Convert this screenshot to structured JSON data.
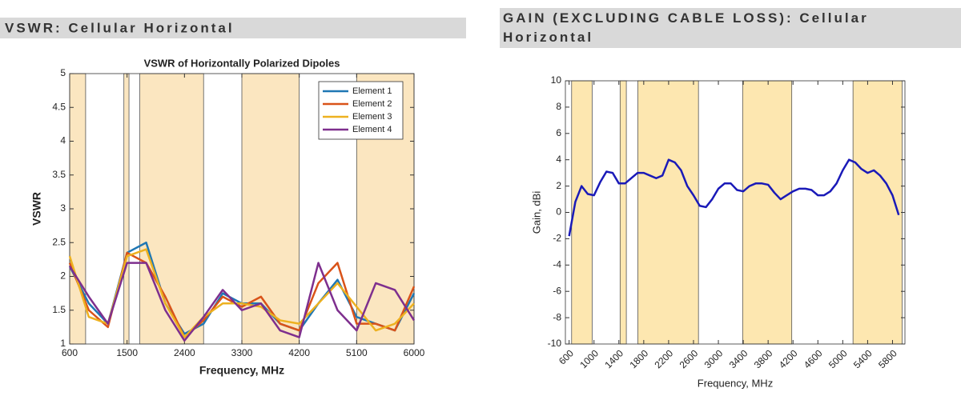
{
  "chart_data": [
    {
      "type": "line",
      "section_title": "VSWR: Cellular Horizontal",
      "title": "VSWR of Horizontally Polarized Dipoles",
      "x_label": "Frequency, MHz",
      "y_label": "VSWR",
      "xlim": [
        600,
        6000
      ],
      "xticks": [
        600,
        1500,
        2400,
        3300,
        4200,
        5100,
        6000
      ],
      "ylim": [
        1,
        5
      ],
      "yticks": [
        1,
        1.5,
        2,
        2.5,
        3,
        3.5,
        4,
        4.5,
        5
      ],
      "grid": false,
      "legend": "upper right",
      "band_color": "#fbe6c0",
      "bands": [
        [
          600,
          850
        ],
        [
          1450,
          1530
        ],
        [
          1700,
          2700
        ],
        [
          3300,
          4200
        ],
        [
          5100,
          6000
        ]
      ],
      "x": [
        600,
        900,
        1200,
        1500,
        1800,
        2100,
        2400,
        2700,
        3000,
        3300,
        3600,
        3900,
        4200,
        4500,
        4800,
        5100,
        5400,
        5700,
        6000
      ],
      "series": [
        {
          "name": "Element 1",
          "color": "#1f77b4",
          "values": [
            2.15,
            1.6,
            1.3,
            2.35,
            2.5,
            1.6,
            1.15,
            1.3,
            1.75,
            1.6,
            1.6,
            1.3,
            1.2,
            1.6,
            1.95,
            1.4,
            1.3,
            1.2,
            1.75
          ]
        },
        {
          "name": "Element 2",
          "color": "#d95319",
          "values": [
            2.2,
            1.5,
            1.25,
            2.35,
            2.2,
            1.7,
            1.1,
            1.35,
            1.7,
            1.55,
            1.7,
            1.3,
            1.2,
            1.9,
            2.2,
            1.3,
            1.3,
            1.2,
            1.85
          ]
        },
        {
          "name": "Element 3",
          "color": "#edb120",
          "values": [
            2.3,
            1.4,
            1.3,
            2.3,
            2.4,
            1.6,
            1.1,
            1.4,
            1.6,
            1.6,
            1.55,
            1.35,
            1.3,
            1.6,
            1.9,
            1.55,
            1.2,
            1.3,
            1.6
          ]
        },
        {
          "name": "Element 4",
          "color": "#7e2f8e",
          "values": [
            2.15,
            1.7,
            1.3,
            2.2,
            2.2,
            1.5,
            1.05,
            1.4,
            1.8,
            1.5,
            1.6,
            1.2,
            1.1,
            2.2,
            1.5,
            1.2,
            1.9,
            1.8,
            1.35
          ]
        }
      ]
    },
    {
      "type": "line",
      "section_title": "GAIN (EXCLUDING CABLE LOSS): Cellular Horizontal",
      "x_label": "Frequency, MHz",
      "y_label": "Gain, dBi",
      "xlim": [
        540,
        6000
      ],
      "xticks": [
        600,
        1000,
        1400,
        1800,
        2200,
        2600,
        3000,
        3400,
        3800,
        4200,
        4600,
        5000,
        5400,
        5800
      ],
      "ylim": [
        -10,
        10
      ],
      "yticks": [
        -10,
        -8,
        -6,
        -4,
        -2,
        0,
        2,
        4,
        6,
        8,
        10
      ],
      "grid": false,
      "band_color": "#fde7b0",
      "bands": [
        [
          640,
          970
        ],
        [
          1420,
          1520
        ],
        [
          1705,
          2680
        ],
        [
          3390,
          4180
        ],
        [
          5165,
          5955
        ]
      ],
      "color": "#1a1ab8",
      "x": [
        600,
        700,
        800,
        900,
        1000,
        1100,
        1200,
        1300,
        1400,
        1500,
        1600,
        1700,
        1800,
        1900,
        2000,
        2100,
        2200,
        2300,
        2400,
        2500,
        2600,
        2700,
        2800,
        2900,
        3000,
        3100,
        3200,
        3300,
        3400,
        3500,
        3600,
        3700,
        3800,
        3900,
        4000,
        4100,
        4200,
        4300,
        4400,
        4500,
        4600,
        4700,
        4800,
        4900,
        5000,
        5100,
        5200,
        5300,
        5400,
        5500,
        5600,
        5700,
        5800,
        5900
      ],
      "values": [
        -1.8,
        0.8,
        2.0,
        1.4,
        1.3,
        2.3,
        3.1,
        3.0,
        2.2,
        2.2,
        2.6,
        3.0,
        3.0,
        2.8,
        2.6,
        2.8,
        4.0,
        3.8,
        3.2,
        2.0,
        1.3,
        0.5,
        0.4,
        1.0,
        1.8,
        2.2,
        2.2,
        1.7,
        1.6,
        2.0,
        2.2,
        2.2,
        2.1,
        1.5,
        1.0,
        1.3,
        1.6,
        1.8,
        1.8,
        1.7,
        1.3,
        1.3,
        1.6,
        2.2,
        3.2,
        4.0,
        3.8,
        3.3,
        3.0,
        3.2,
        2.8,
        2.2,
        1.3,
        -0.2
      ]
    }
  ]
}
